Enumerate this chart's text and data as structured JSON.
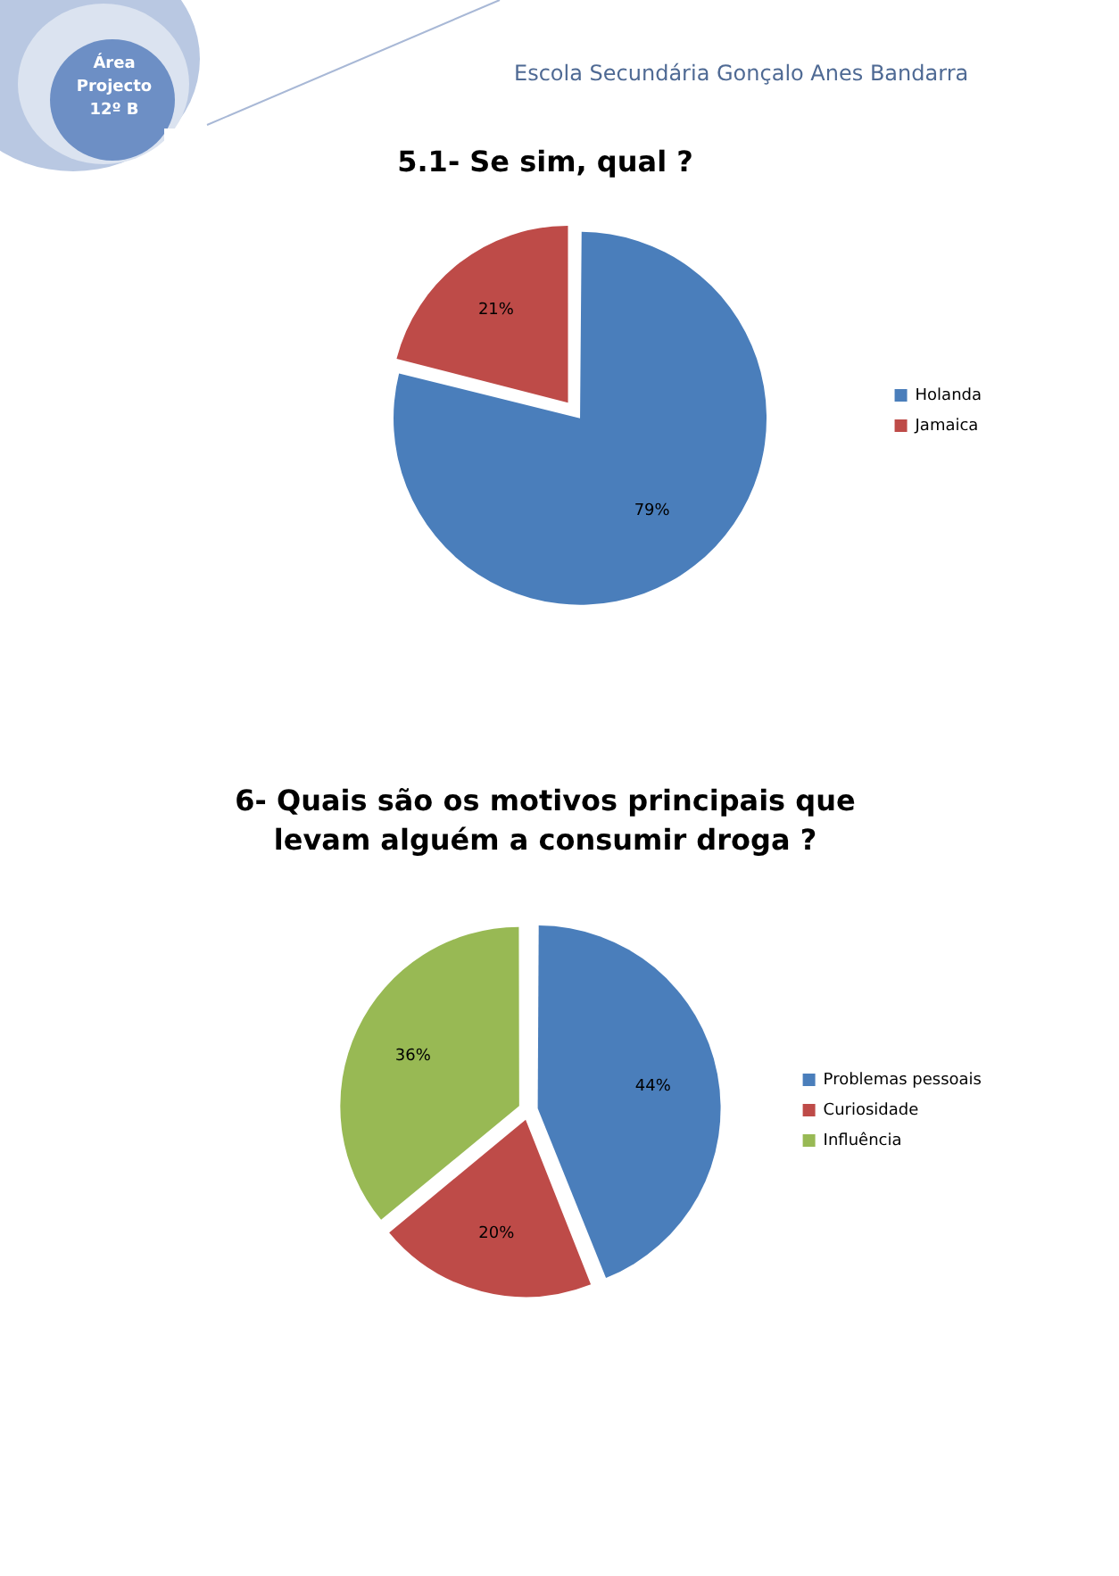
{
  "chart_data": [
    {
      "type": "pie",
      "title": "5.1- Se sim, qual ?",
      "categories": [
        "Holanda",
        "Jamaica"
      ],
      "values": [
        79,
        21
      ],
      "colors": [
        "#4a7ebb",
        "#be4b48"
      ],
      "value_labels": [
        "79%",
        "21%"
      ],
      "legend": "right",
      "annotations": [
        "Área Projecto 12º B",
        "Escola Secundária Gonçalo Anes Bandarra"
      ]
    },
    {
      "type": "pie",
      "title": "6- Quais são os motivos principais que levam alguém a consumir droga ?",
      "categories": [
        "Problemas pessoais",
        "Curiosidade",
        "Influência"
      ],
      "values": [
        44,
        20,
        36
      ],
      "colors": [
        "#4a7ebb",
        "#be4b48",
        "#98b954"
      ],
      "value_labels": [
        "44%",
        "20%",
        "36%"
      ],
      "legend": "right"
    }
  ]
}
